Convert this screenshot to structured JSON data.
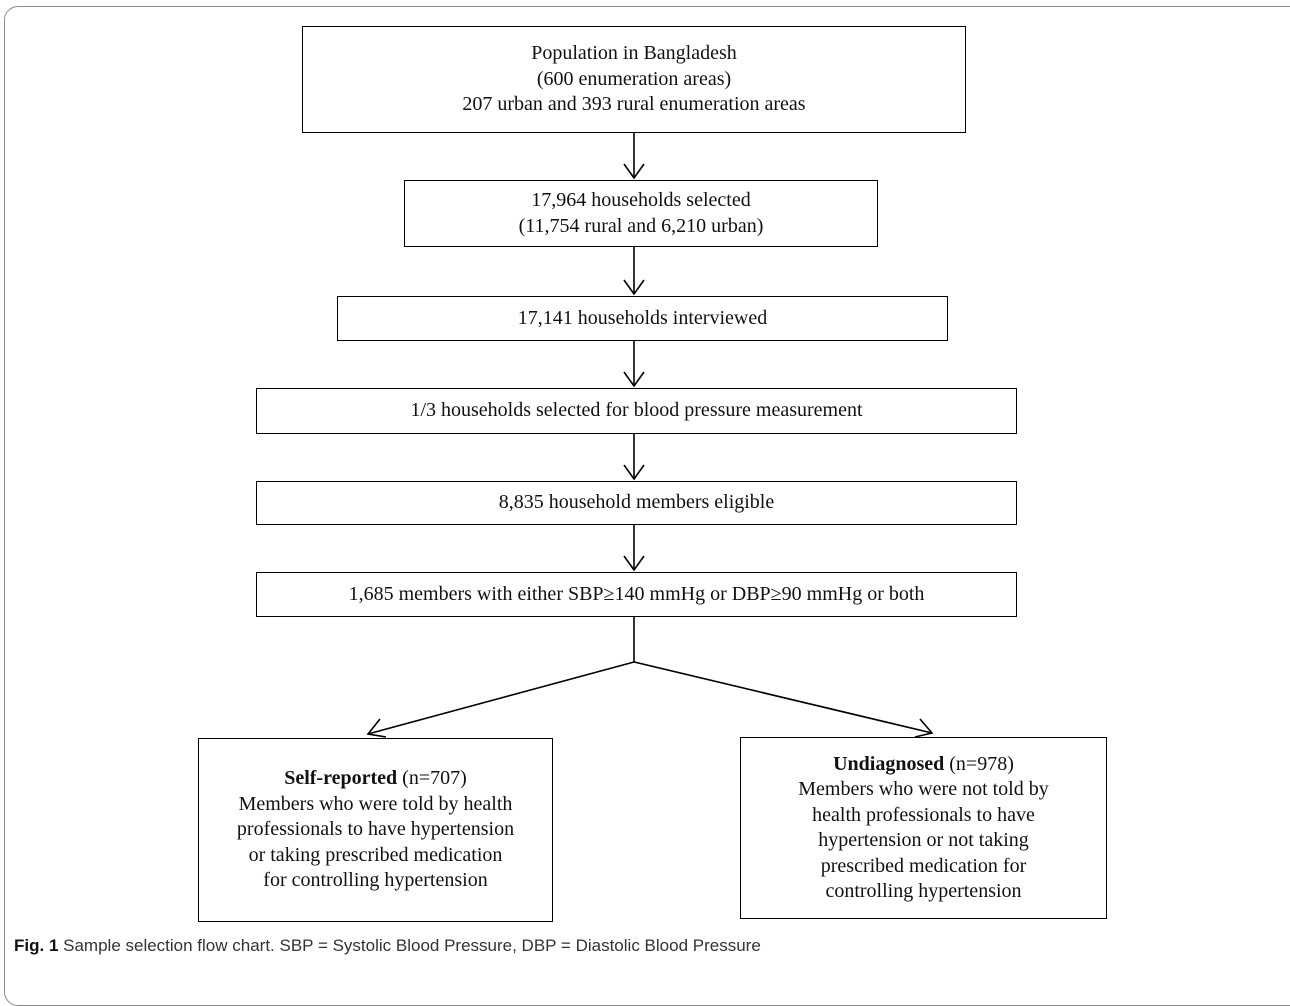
{
  "boxes": {
    "population": {
      "line1": "Population in Bangladesh",
      "line2": "(600 enumeration areas)",
      "line3": "207 urban and 393 rural enumeration areas"
    },
    "selected": {
      "line1": "17,964 households selected",
      "line2": "(11,754 rural and 6,210 urban)"
    },
    "interviewed": {
      "line1": "17,141 households interviewed"
    },
    "bp_selection": {
      "line1": "1/3 households selected for blood pressure measurement"
    },
    "eligible": {
      "line1": "8,835 household members eligible"
    },
    "high_bp": {
      "line1": "1,685 members with either SBP≥140 mmHg or DBP≥90 mmHg or both"
    },
    "self_reported": {
      "title": "Self-reported",
      "count": " (n=707)",
      "line1": "Members who were told by health",
      "line2": "professionals to have hypertension",
      "line3": "or taking prescribed medication",
      "line4": "for controlling hypertension"
    },
    "undiagnosed": {
      "title": "Undiagnosed",
      "count": " (n=978)",
      "line1": "Members who were not told by",
      "line2": "health professionals to have",
      "line3": "hypertension or not taking",
      "line4": "prescribed medication for",
      "line5": "controlling hypertension"
    }
  },
  "caption": {
    "label": "Fig. 1",
    "text": " Sample selection flow chart. SBP = Systolic Blood Pressure, DBP = Diastolic Blood Pressure"
  }
}
